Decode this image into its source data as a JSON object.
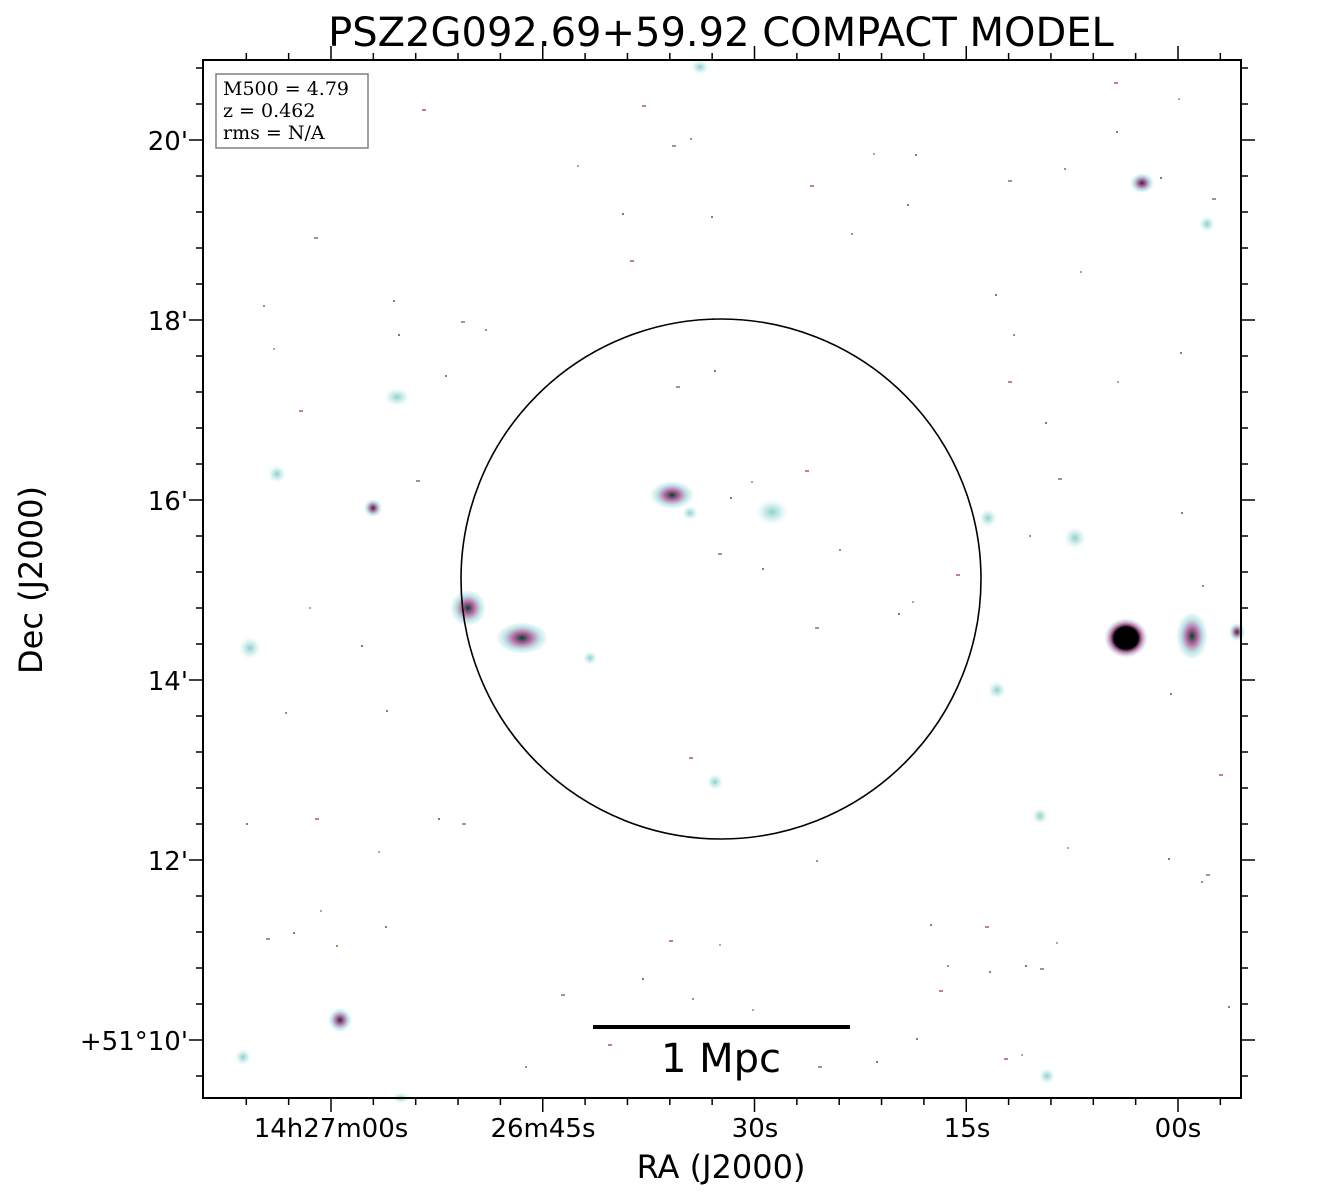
{
  "figure": {
    "title": "PSZ2G092.69+59.92 COMPACT MODEL",
    "info_box": {
      "lines": [
        "M500 = 4.79",
        "z = 0.462",
        "rms = N/A"
      ]
    },
    "x_axis": {
      "label": "RA (J2000)",
      "tick_labels": [
        "14h27m00s",
        "26m45s",
        "30s",
        "15s",
        "00s"
      ]
    },
    "y_axis": {
      "label": "Dec (J2000)",
      "tick_labels": [
        "20'",
        "18'",
        "16'",
        "14'",
        "12'",
        "+51°10'"
      ]
    },
    "scale_bar": {
      "label": "1 Mpc"
    },
    "colors": {
      "source_core": "#0b3d2a",
      "source_mid": "#b05a9a",
      "source_halo": "#a9dde0",
      "background": "#ffffff",
      "frame": "#000000"
    }
  }
}
